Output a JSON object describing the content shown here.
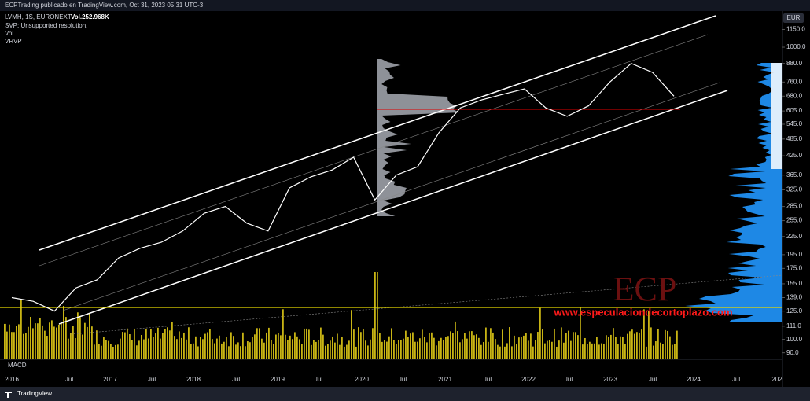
{
  "header": {
    "publisher": "ECPTrading publicado en TradingView.com, Oct 31, 2023 05:31 UTC-3",
    "symbol": "LVMH, 1S, EURONEXT",
    "volume": "Vol.252.968K",
    "indicators": [
      "SVP: Unsupported resolution.",
      "Vol.",
      "VRVP"
    ]
  },
  "watermark": {
    "logo": "ECP",
    "url": "www.especulaciondecortoplazo.com"
  },
  "pane_label": "MACD",
  "currency": "EUR",
  "footer": "TradingView",
  "chart_data": {
    "type": "line",
    "log_scale": true,
    "color": "#ffffff",
    "ylim": [
      86,
      1330
    ],
    "yticks": [
      {
        "value": 1150,
        "label": "1150.0"
      },
      {
        "value": 1000,
        "label": "1000.0"
      },
      {
        "value": 880,
        "label": "880.0"
      },
      {
        "value": 760,
        "label": "760.0"
      },
      {
        "value": 680,
        "label": "680.0"
      },
      {
        "value": 605,
        "label": "605.0"
      },
      {
        "value": 545,
        "label": "545.0"
      },
      {
        "value": 485,
        "label": "485.0"
      },
      {
        "value": 425,
        "label": "425.0"
      },
      {
        "value": 365,
        "label": "365.0"
      },
      {
        "value": 325,
        "label": "325.0"
      },
      {
        "value": 285,
        "label": "285.0"
      },
      {
        "value": 255,
        "label": "255.0"
      },
      {
        "value": 225,
        "label": "225.0"
      },
      {
        "value": 195,
        "label": "195.0"
      },
      {
        "value": 175,
        "label": "175.0"
      },
      {
        "value": 155,
        "label": "155.0"
      },
      {
        "value": 139,
        "label": "139.0"
      },
      {
        "value": 125,
        "label": "125.0"
      },
      {
        "value": 111,
        "label": "111.0"
      },
      {
        "value": 100,
        "label": "100.0"
      },
      {
        "value": 90,
        "label": "90.0"
      }
    ],
    "x_labels": [
      "2016",
      "Jul",
      "2017",
      "Jul",
      "2018",
      "Jul",
      "2019",
      "Jul",
      "2020",
      "Jul",
      "2021",
      "Jul",
      "2022",
      "Jul",
      "2023",
      "Jul",
      "2024",
      "Jul",
      "202"
    ],
    "values": [
      139,
      135,
      125,
      150,
      160,
      190,
      205,
      215,
      235,
      270,
      285,
      250,
      235,
      330,
      360,
      380,
      420,
      300,
      365,
      390,
      510,
      620,
      660,
      690,
      720,
      620,
      580,
      630,
      760,
      880,
      820,
      680
    ]
  }
}
